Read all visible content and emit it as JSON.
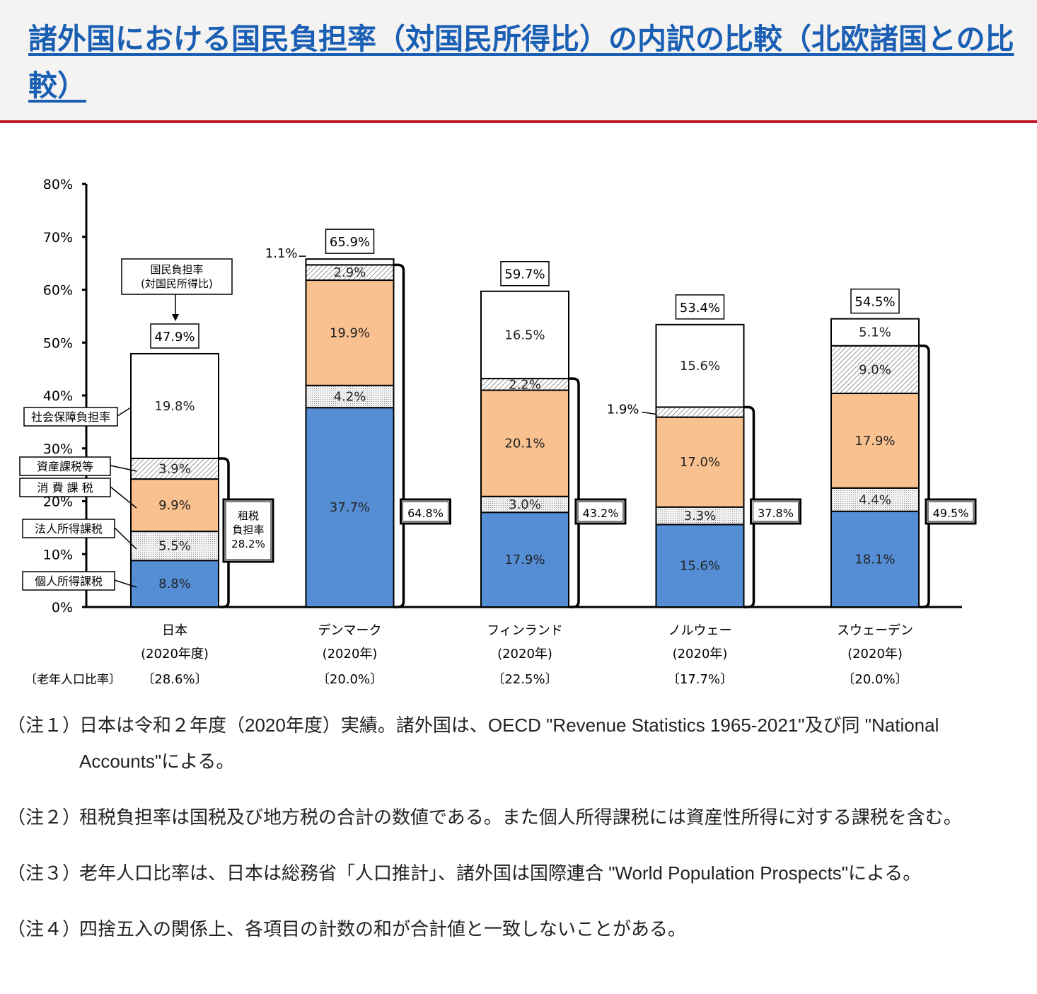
{
  "title": "諸外国における国民負担率（対国民所得比）の内訳の比較（北欧諸国との比較）",
  "chart_data": {
    "type": "bar",
    "stacked": true,
    "ylim": [
      0,
      80
    ],
    "yticks": [
      "0%",
      "10%",
      "20%",
      "30%",
      "40%",
      "50%",
      "60%",
      "70%",
      "80%"
    ],
    "components": [
      "個人所得課税",
      "法人所得課税",
      "消 費 課 税",
      "資産課税等",
      "社会保障負担率"
    ],
    "colors": {
      "個人所得課税": "#558ed5",
      "法人所得課税": "#dcdcdc",
      "消 費 課 税": "#f9c090",
      "資産課税等": "#e0e0e0",
      "社会保障負担率": "#ffffff"
    },
    "categories": [
      {
        "name": "日本",
        "year": "(2020年度)",
        "elderly": "〔28.6%〕",
        "values": [
          8.8,
          5.5,
          9.9,
          3.9,
          19.8
        ],
        "labels": [
          "8.8%",
          "5.5%",
          "9.9%",
          "3.9%",
          "19.8%"
        ],
        "total": "47.9%",
        "tax": "28.2%"
      },
      {
        "name": "デンマーク",
        "year": "(2020年)",
        "elderly": "〔20.0%〕",
        "values": [
          37.7,
          4.2,
          19.9,
          2.9,
          1.1
        ],
        "labels": [
          "37.7%",
          "4.2%",
          "19.9%",
          "2.9%",
          "1.1%"
        ],
        "total": "65.9%",
        "tax": "64.8%"
      },
      {
        "name": "フィンランド",
        "year": "(2020年)",
        "elderly": "〔22.5%〕",
        "values": [
          17.9,
          3.0,
          20.1,
          2.2,
          16.5
        ],
        "labels": [
          "17.9%",
          "3.0%",
          "20.1%",
          "2.2%",
          "16.5%"
        ],
        "total": "59.7%",
        "tax": "43.2%"
      },
      {
        "name": "ノルウェー",
        "year": "(2020年)",
        "elderly": "〔17.7%〕",
        "values": [
          15.6,
          3.3,
          17.0,
          1.9,
          15.6
        ],
        "labels": [
          "15.6%",
          "3.3%",
          "17.0%",
          "1.9%",
          "15.6%"
        ],
        "total": "53.4%",
        "tax": "37.8%"
      },
      {
        "name": "スウェーデン",
        "year": "(2020年)",
        "elderly": "〔20.0%〕",
        "values": [
          18.1,
          4.4,
          17.9,
          9.0,
          5.1
        ],
        "labels": [
          "18.1%",
          "4.4%",
          "17.9%",
          "9.0%",
          "5.1%"
        ],
        "total": "54.5%",
        "tax": "49.5%"
      }
    ],
    "annotation_total": [
      "国民負担率",
      "(対国民所得比)"
    ],
    "annotation_tax": [
      "租税",
      "負担率"
    ],
    "elderly_label": "〔老年人口比率〕"
  },
  "notes": [
    {
      "key": "（注１）",
      "text": "日本は令和２年度（2020年度）実績。諸外国は、OECD \"Revenue Statistics 1965-2021\"及び同 \"National Accounts\"による。"
    },
    {
      "key": "（注２）",
      "text": "租税負担率は国税及び地方税の合計の数値である。また個人所得課税には資産性所得に対する課税を含む。"
    },
    {
      "key": "（注３）",
      "text": "老年人口比率は、日本は総務省「人口推計」、諸外国は国際連合 \"World Population Prospects\"による。"
    },
    {
      "key": "（注４）",
      "text": "四捨五入の関係上、各項目の計数の和が合計値と一致しないことがある。"
    }
  ]
}
